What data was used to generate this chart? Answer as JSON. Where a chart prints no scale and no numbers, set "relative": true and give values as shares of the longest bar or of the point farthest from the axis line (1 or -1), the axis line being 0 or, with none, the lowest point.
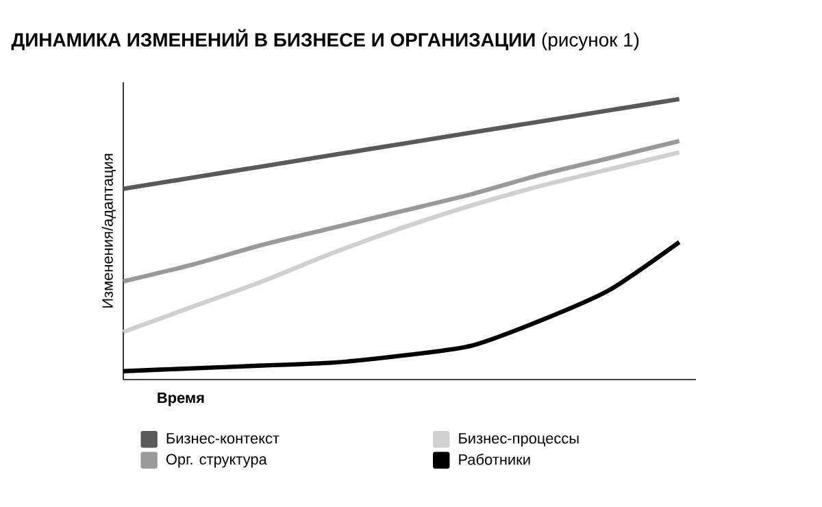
{
  "chart_data": {
    "type": "line",
    "title": "**ДИНАМИКА ИЗМЕНЕНИЙ В БИЗНЕСЕ И ОРГАНИЗАЦИИ** (рисунок 1)",
    "xlabel": "Время",
    "ylabel": "Изменения/адаптация",
    "relative": true,
    "legend": "bottom",
    "categories": [
      null,
      null,
      null,
      null,
      null,
      null,
      null,
      null,
      null
    ],
    "series": [
      {
        "name": "Бизнес-контекст",
        "color": "#595959",
        "values": [
          0.68,
          0.72,
          0.76,
          0.8,
          0.84,
          0.88,
          0.92,
          0.96,
          1
        ]
      },
      {
        "name": "Орг. структура",
        "color": "#999999",
        "values": [
          0.35,
          0.41,
          0.48,
          0.54,
          0.6,
          0.66,
          0.73,
          0.79,
          0.85
        ]
      },
      {
        "name": "Бизнес-процессы",
        "color": "#d0d0d0",
        "values": [
          0.17,
          0.26,
          0.35,
          0.45,
          0.54,
          0.62,
          0.69,
          0.75,
          0.81
        ]
      },
      {
        "name": "Работники",
        "color": "#000000",
        "values": [
          0.03,
          0.04,
          0.05,
          0.06,
          0.085,
          0.12,
          0.21,
          0.32,
          0.49
        ]
      }
    ]
  }
}
